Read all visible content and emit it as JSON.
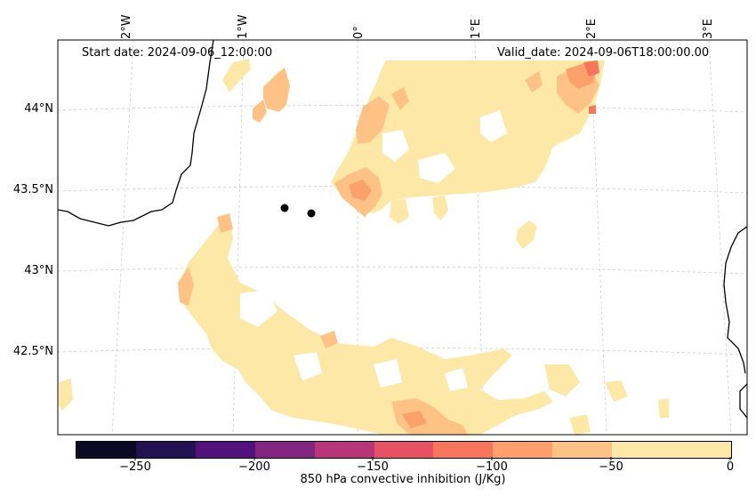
{
  "map": {
    "start_date": "Start date: 2024-09-06_12:00:00",
    "valid_date": "Valid_date: 2024-09-06T18:00:00.00",
    "lon_labels": [
      "2°W",
      "1°W",
      "0°",
      "1°E",
      "2°E",
      "3°E"
    ],
    "lat_labels": [
      "44°N",
      "43.5°N",
      "43°N",
      "42.5°N"
    ],
    "markers": [
      {
        "name": "point-a",
        "lon": -0.63,
        "lat": 43.4
      },
      {
        "name": "point-b",
        "lon": -0.4,
        "lat": 43.36
      }
    ]
  },
  "colorbar": {
    "label": "850 hPa convective inhibition (J/Kg)",
    "min": -275,
    "max": 0,
    "ticks": [
      "−250",
      "−200",
      "−150",
      "−100",
      "−50",
      "0"
    ],
    "tick_values": [
      -250,
      -200,
      -150,
      -100,
      -50,
      0
    ],
    "colors": [
      "#0b0924",
      "#231151",
      "#51127c",
      "#822681",
      "#b63679",
      "#e65164",
      "#fb8861",
      "#fe9f6d",
      "#fec287",
      "#fde8a8",
      "#fde8a8"
    ]
  },
  "palette": {
    "fill_light": "#fde8a8",
    "fill_mid": "#fec287",
    "fill_orange": "#fba26c",
    "fill_red": "#f6765c",
    "coast": "#000000",
    "grid": "#cccccc"
  }
}
